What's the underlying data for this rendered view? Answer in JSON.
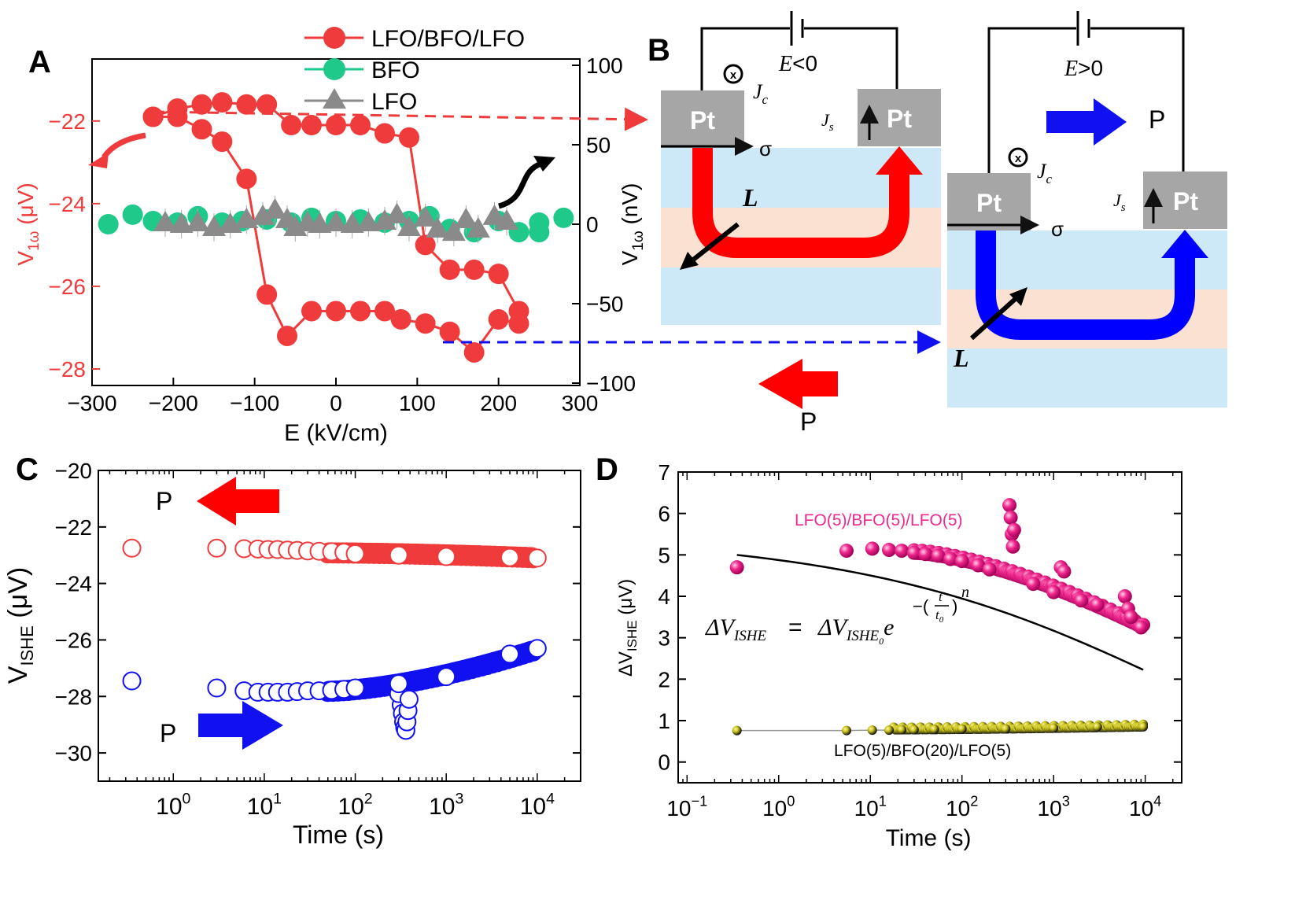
{
  "panel_labels": {
    "a": "A",
    "b": "B",
    "c": "C",
    "d": "D"
  },
  "colors": {
    "red": "#ef3b3b",
    "green": "#1ec98a",
    "gray": "#8a8a8a",
    "blue": "#1010f0",
    "pink": "#f0288e",
    "black": "#111111",
    "yellow": "#d9d21c",
    "light_blue": "#cde9f7",
    "peach": "#fbe1d2",
    "pt_gray": "#a6a6a6"
  },
  "chart_data": [
    {
      "id": "A",
      "type": "scatter",
      "xlabel": "E (kV/cm)",
      "ylabel_left_main": "V",
      "ylabel_left_sub": "1ω",
      "ylabel_left_unit": " (μV)",
      "ylabel_right_main": "V",
      "ylabel_right_sub": "1ω",
      "ylabel_right_unit": " (nV)",
      "xlim": [
        -300,
        300
      ],
      "ylim_left": [
        -28.4,
        -20.5
      ],
      "ylim_right": [
        -100,
        100
      ],
      "xticks": [
        -300,
        -200,
        -100,
        0,
        100,
        200,
        300
      ],
      "xtick_labels": [
        "−300",
        "−200",
        "−100",
        "0",
        "100",
        "200",
        "300"
      ],
      "yticks_left": [
        -22,
        -24,
        -26,
        -28
      ],
      "ytick_labels_left": [
        "−22",
        "−24",
        "−26",
        "−28"
      ],
      "yticks_right": [
        100,
        50,
        0,
        -50,
        -100
      ],
      "ytick_labels_right": [
        "100",
        "50",
        "0",
        "−50",
        "−100"
      ],
      "legend_position": "top-right",
      "series": [
        {
          "name": "LFO/BFO/LFO",
          "axis": "left",
          "marker": "circle",
          "connect": true,
          "color": "#ef3b3b",
          "points": [
            [
              -225,
              -21.9
            ],
            [
              -195,
              -21.7
            ],
            [
              -165,
              -21.6
            ],
            [
              -140,
              -21.55
            ],
            [
              -110,
              -21.6
            ],
            [
              -85,
              -21.6
            ],
            [
              -55,
              -22.1
            ],
            [
              -30,
              -22.1
            ],
            [
              0,
              -22.1
            ],
            [
              30,
              -22.1
            ],
            [
              60,
              -22.3
            ],
            [
              90,
              -22.4
            ],
            [
              110,
              -25.0
            ],
            [
              140,
              -25.6
            ],
            [
              170,
              -25.6
            ],
            [
              200,
              -25.7
            ],
            [
              225,
              -26.6
            ],
            [
              225,
              -26.9
            ],
            [
              200,
              -26.8
            ],
            [
              170,
              -27.6
            ],
            [
              140,
              -27.1
            ],
            [
              110,
              -26.9
            ],
            [
              80,
              -26.8
            ],
            [
              60,
              -26.6
            ],
            [
              30,
              -26.6
            ],
            [
              0,
              -26.6
            ],
            [
              -30,
              -26.6
            ],
            [
              -60,
              -27.2
            ],
            [
              -85,
              -26.2
            ],
            [
              -110,
              -23.4
            ],
            [
              -140,
              -22.5
            ],
            [
              -165,
              -22.2
            ],
            [
              -195,
              -21.9
            ],
            [
              -225,
              -21.9
            ]
          ]
        },
        {
          "name": "BFO",
          "axis": "right",
          "marker": "circle",
          "connect": false,
          "color": "#1ec98a",
          "points": [
            [
              -280,
              0
            ],
            [
              -250,
              6
            ],
            [
              -225,
              2
            ],
            [
              -195,
              1
            ],
            [
              -170,
              5
            ],
            [
              -140,
              1
            ],
            [
              -115,
              2
            ],
            [
              -85,
              3
            ],
            [
              -55,
              1
            ],
            [
              -30,
              4
            ],
            [
              0,
              2
            ],
            [
              30,
              3
            ],
            [
              60,
              1
            ],
            [
              90,
              2
            ],
            [
              115,
              5
            ],
            [
              140,
              -3
            ],
            [
              170,
              -5
            ],
            [
              200,
              2
            ],
            [
              225,
              -5
            ],
            [
              250,
              -5
            ],
            [
              250,
              1
            ],
            [
              280,
              4
            ]
          ]
        },
        {
          "name": "LFO",
          "axis": "right",
          "marker": "triangle",
          "connect": false,
          "color": "#8a8a8a",
          "points": [
            [
              -210,
              1
            ],
            [
              -190,
              0
            ],
            [
              -170,
              1
            ],
            [
              -150,
              -2
            ],
            [
              -130,
              0
            ],
            [
              -110,
              3
            ],
            [
              -90,
              5
            ],
            [
              -75,
              9
            ],
            [
              -60,
              3
            ],
            [
              -50,
              -2
            ],
            [
              -35,
              1
            ],
            [
              -20,
              0
            ],
            [
              0,
              1
            ],
            [
              20,
              0
            ],
            [
              40,
              1
            ],
            [
              60,
              2
            ],
            [
              75,
              6
            ],
            [
              90,
              -2
            ],
            [
              110,
              4
            ],
            [
              125,
              -3
            ],
            [
              145,
              -5
            ],
            [
              160,
              3
            ],
            [
              175,
              -3
            ],
            [
              195,
              5
            ],
            [
              210,
              2
            ]
          ]
        }
      ]
    },
    {
      "id": "C",
      "type": "scatter",
      "xscale": "log",
      "xlabel": "Time (s)",
      "ylabel_main": "V",
      "ylabel_sub": "ISHE",
      "ylabel_unit": " (μV)",
      "xlim": [
        0.15,
        30000
      ],
      "ylim": [
        -31,
        -20
      ],
      "xticks_exp": [
        0,
        1,
        2,
        3,
        4
      ],
      "yticks": [
        -20,
        -22,
        -24,
        -26,
        -28,
        -30
      ],
      "ytick_labels": [
        "−20",
        "−22",
        "−24",
        "−26",
        "−28",
        "−30"
      ],
      "series": [
        {
          "name": "P left",
          "color": "#ef3b3b",
          "marker": "open-circle",
          "points": [
            [
              0.35,
              -22.75
            ],
            [
              3,
              -22.75
            ],
            [
              6,
              -22.77
            ],
            [
              8.5,
              -22.78
            ],
            [
              11,
              -22.8
            ],
            [
              14,
              -22.8
            ],
            [
              18,
              -22.82
            ],
            [
              23,
              -22.83
            ],
            [
              30,
              -22.85
            ],
            [
              40,
              -22.86
            ],
            [
              55,
              -22.88
            ],
            [
              75,
              -22.9
            ],
            [
              100,
              -22.95
            ],
            [
              300,
              -23.0
            ],
            [
              1000,
              -23.05
            ],
            [
              5000,
              -23.08
            ],
            [
              10000,
              -23.1
            ]
          ],
          "dense_from": 50,
          "dense_to": 9000,
          "dense_start": -22.88,
          "dense_end": -23.05
        },
        {
          "name": "P right",
          "color": "#1010f0",
          "marker": "open-circle",
          "points": [
            [
              0.35,
              -27.45
            ],
            [
              3,
              -27.7
            ],
            [
              6,
              -27.8
            ],
            [
              8.5,
              -27.85
            ],
            [
              11,
              -27.85
            ],
            [
              14,
              -27.85
            ],
            [
              18,
              -27.85
            ],
            [
              23,
              -27.83
            ],
            [
              30,
              -27.8
            ],
            [
              40,
              -27.8
            ],
            [
              55,
              -27.78
            ],
            [
              75,
              -27.75
            ],
            [
              100,
              -27.7
            ],
            [
              300,
              -27.55
            ],
            [
              1000,
              -27.3
            ],
            [
              5000,
              -26.5
            ],
            [
              10000,
              -26.3
            ]
          ],
          "dense_from": 50,
          "dense_to": 9000,
          "dense_start": -27.78,
          "dense_end": -26.35,
          "dip": [
            [
              320,
              -28.3
            ],
            [
              330,
              -28.6
            ],
            [
              340,
              -28.9
            ],
            [
              350,
              -29.1
            ],
            [
              360,
              -29.2
            ],
            [
              370,
              -28.9
            ],
            [
              380,
              -28.5
            ],
            [
              300,
              -27.9
            ],
            [
              390,
              -28.1
            ]
          ]
        }
      ],
      "annotations": {
        "p_top": "P",
        "p_bottom": "P"
      }
    },
    {
      "id": "D",
      "type": "scatter",
      "xscale": "log",
      "xlabel": "Time (s)",
      "ylabel_prefix": "ΔV",
      "ylabel_sub": "ISHE",
      "ylabel_unit": " (μV)",
      "xlim": [
        0.08,
        25000
      ],
      "ylim": [
        -0.5,
        7
      ],
      "xticks_exp": [
        -1,
        0,
        1,
        2,
        3,
        4
      ],
      "yticks": [
        0,
        1,
        2,
        3,
        4,
        5,
        6,
        7
      ],
      "series": [
        {
          "name": "LFO(5)/BFO(5)/LFO(5)",
          "color": "#f0288e",
          "marker": "sphere",
          "points": [
            [
              0.35,
              4.7
            ],
            [
              5.5,
              5.1
            ],
            [
              10.5,
              5.15
            ],
            [
              16,
              5.12
            ],
            [
              22,
              5.1
            ],
            [
              30,
              5.05
            ],
            [
              40,
              5.02
            ],
            [
              55,
              4.98
            ],
            [
              75,
              4.9
            ],
            [
              100,
              4.85
            ],
            [
              150,
              4.75
            ],
            [
              200,
              4.65
            ],
            [
              330,
              6.2
            ],
            [
              340,
              5.9
            ],
            [
              350,
              5.5
            ],
            [
              360,
              5.2
            ],
            [
              370,
              5.6
            ],
            [
              600,
              4.3
            ],
            [
              1000,
              4.1
            ],
            [
              1200,
              4.7
            ],
            [
              1300,
              4.6
            ],
            [
              2000,
              3.9
            ],
            [
              3000,
              3.8
            ],
            [
              6000,
              4.0
            ],
            [
              6500,
              3.7
            ],
            [
              7000,
              3.5
            ],
            [
              9000,
              3.25
            ]
          ],
          "dense_from": 30,
          "dense_to": 9500,
          "dense_start": 5.05,
          "dense_end": 3.25
        },
        {
          "name": "LFO(5)/BFO(20)/LFO(5)",
          "color": "#d9d21c",
          "marker": "sphere-dark",
          "points": [
            [
              0.35,
              0.76
            ],
            [
              5.5,
              0.76
            ],
            [
              10.5,
              0.77
            ],
            [
              16,
              0.77
            ],
            [
              22,
              0.78
            ],
            [
              30,
              0.78
            ],
            [
              50,
              0.79
            ],
            [
              100,
              0.8
            ],
            [
              300,
              0.8
            ],
            [
              1000,
              0.82
            ],
            [
              3000,
              0.85
            ],
            [
              9500,
              0.85
            ]
          ],
          "dense_from": 18,
          "dense_to": 9500,
          "dense_start": 0.78,
          "dense_end": 0.85
        }
      ],
      "fit": {
        "V0": 5.5,
        "t0": 15000,
        "n": 0.22,
        "x_from": 0.35,
        "x_to": 9500
      }
    }
  ],
  "panel_a": {
    "legend": [
      "LFO/BFO/LFO",
      "BFO",
      "LFO"
    ]
  },
  "panel_b": {
    "left": {
      "pt_left": "Pt",
      "pt_right": "Pt",
      "field": "<0",
      "field_var": "E",
      "jc": "J",
      "jc_sub": "c",
      "js": "J",
      "js_sub": "s",
      "sigma": "σ",
      "L": "L",
      "P": "P"
    },
    "right": {
      "pt_left": "Pt",
      "pt_right": "Pt",
      "field": ">0",
      "field_var": "E",
      "jc": "J",
      "jc_sub": "c",
      "js": "J",
      "js_sub": "s",
      "sigma": "σ",
      "L": "L",
      "P": "P"
    }
  },
  "panel_d": {
    "label_pink": "LFO(5)/BFO(5)/LFO(5)",
    "label_black": "LFO(5)/BFO(20)/LFO(5)",
    "eq_lhs_delta": "ΔV",
    "eq_lhs_sub": "ISHE",
    "eq_equals": " = ",
    "eq_rhs_delta": "ΔV",
    "eq_rhs_sub": "ISHE",
    "eq_rhs_sub0": "0",
    "eq_e": "e",
    "eq_exp_minus": "−(",
    "eq_exp_t": "t",
    "eq_exp_t0": "t",
    "eq_exp_t0_sub": "0",
    "eq_exp_close": ")",
    "eq_exp_n": "n"
  }
}
